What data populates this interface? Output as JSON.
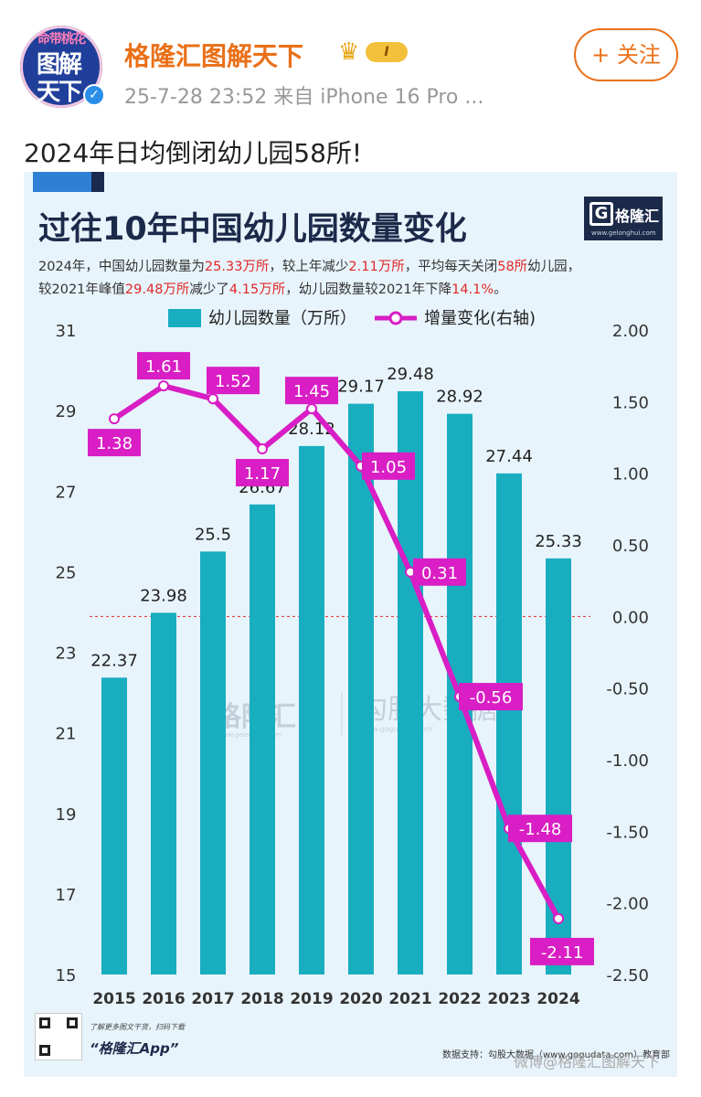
{
  "post": {
    "avatar_top": "命带桃花",
    "avatar_line1": "图解",
    "avatar_line2": "天下",
    "username": "格隆汇图解天下",
    "level_badge": "I",
    "meta": "25-7-28 23:52  来自 iPhone 16 Pro ...",
    "follow_label": "+ 关注",
    "text": "2024年日均倒闭幼儿园58所!"
  },
  "colors": {
    "bar": "#19adc0",
    "line": "#d81ec4",
    "zero_line": "#e02828",
    "card_bg": "#e8f4fb",
    "accent_orange": "#ea7018"
  },
  "card": {
    "title": "过往10年中国幼儿园数量变化",
    "brand": "格隆汇",
    "brand_url": "www.gelonghui.com",
    "summary_parts": [
      {
        "t": "2024年，中国幼儿园数量为",
        "h": false
      },
      {
        "t": "25.33万所",
        "h": true
      },
      {
        "t": "，较上年减少",
        "h": false
      },
      {
        "t": "2.11万所",
        "h": true
      },
      {
        "t": "，平均每天关闭",
        "h": false
      },
      {
        "t": "58所",
        "h": true
      },
      {
        "t": "幼儿园，",
        "h": false
      },
      {
        "t": "较2021年峰值",
        "h": false
      },
      {
        "t": "29.48万所",
        "h": true
      },
      {
        "t": "减少了",
        "h": false
      },
      {
        "t": "4.15万所",
        "h": true
      },
      {
        "t": "，幼儿园数量较2021年下降",
        "h": false
      },
      {
        "t": "14.1%",
        "h": true
      },
      {
        "t": "。",
        "h": false
      }
    ],
    "footer_note": "了解更多图文干货，扫码下载",
    "footer_app": "“格隆汇App”",
    "footer_source": "数据支持：勾股大数据（www.gogudata.com）教育部",
    "watermark_left": "格隆汇",
    "watermark_left_url": "www.gelonghui.com",
    "watermark_right": "勾股大数据",
    "watermark_right_url": "www.gogudata.com",
    "weibo_watermark": "微博@格隆汇图解天下"
  },
  "chart_data": {
    "type": "bar",
    "categories": [
      "2015",
      "2016",
      "2017",
      "2018",
      "2019",
      "2020",
      "2021",
      "2022",
      "2023",
      "2024"
    ],
    "series": [
      {
        "name": "幼儿园数量（万所）",
        "type": "bar",
        "axis": "left",
        "values": [
          22.37,
          23.98,
          25.5,
          26.67,
          28.12,
          29.17,
          29.48,
          28.92,
          27.44,
          25.33
        ],
        "labels": [
          "22.37",
          "23.98",
          "25.5",
          "26.67",
          "28.12",
          "29.17",
          "29.48",
          "28.92",
          "27.44",
          "25.33"
        ]
      },
      {
        "name": "增量变化(右轴)",
        "type": "line",
        "axis": "right",
        "values": [
          1.38,
          1.61,
          1.52,
          1.17,
          1.45,
          1.05,
          0.31,
          -0.56,
          -1.48,
          -2.11
        ],
        "labels": [
          "1.38",
          "1.61",
          "1.52",
          "1.17",
          "1.45",
          "1.05",
          "0.31",
          "-0.56",
          "-1.48",
          "-2.11"
        ]
      }
    ],
    "y_left": {
      "min": 15,
      "max": 31,
      "ticks": [
        "15",
        "17",
        "19",
        "21",
        "23",
        "25",
        "27",
        "29",
        "31"
      ]
    },
    "y_right": {
      "min": -2.5,
      "max": 2.0,
      "ticks": [
        "-2.50",
        "-2.00",
        "-1.50",
        "-1.00",
        "-0.50",
        "0.00",
        "0.50",
        "1.00",
        "1.50",
        "2.00"
      ]
    },
    "legend_position": "top",
    "grid": false
  }
}
